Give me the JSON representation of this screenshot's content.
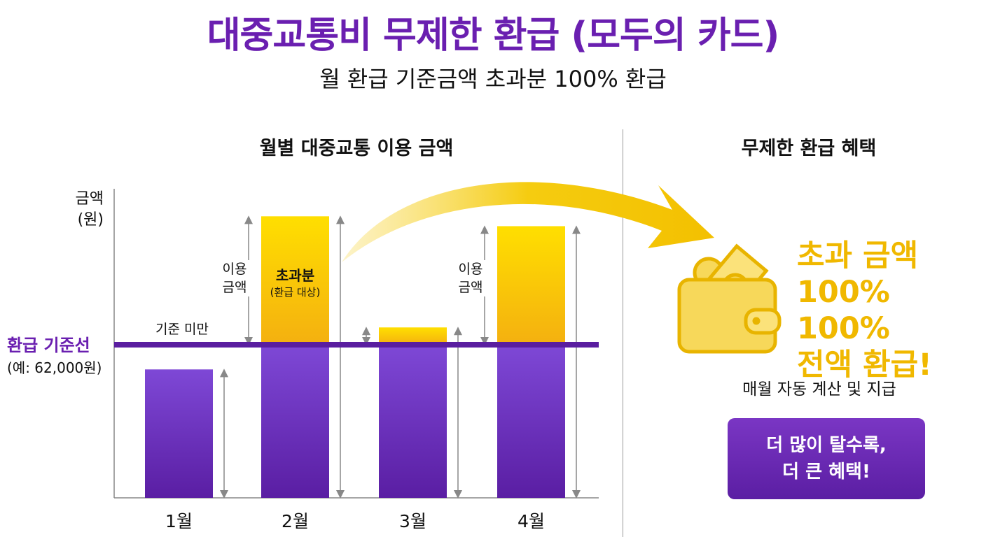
{
  "header": {
    "title": "대중교통비 무제한 환급 (모두의 카드)",
    "subtitle": "월 환급 기준금액 초과분 100% 환급"
  },
  "chart_section": {
    "title": "월별 대중교통 이용 금액",
    "y_label_line1": "금액",
    "y_label_line2": "(원)",
    "threshold_label": "환급 기준선",
    "threshold_note": "(예: 62,000원)",
    "below_label": "기준 미만",
    "usage_label_line1": "이용",
    "usage_label_line2": "금액",
    "excess_label": "초과분",
    "excess_note": "(환급 대상)"
  },
  "chart_data": {
    "type": "bar",
    "categories": [
      "1월",
      "2월",
      "3월",
      "4월"
    ],
    "values": [
      52000,
      114000,
      69000,
      110000
    ],
    "threshold": 62000,
    "ylabel": "금액 (원)",
    "colors": {
      "below": "#6a2dc0",
      "excess": "#f7c600",
      "threshold_line": "#5a1ea0"
    },
    "grid": false
  },
  "benefit_section": {
    "title": "무제한 환급 혜택",
    "headline_line1": "초과 금액",
    "headline_line2": "100% 100%",
    "headline_line3": "전액 환급!",
    "auto_note": "매월 자동 계산 및 지급",
    "cta_line1": "더 많이 탈수록,",
    "cta_line2": "더 큰 혜택!",
    "icon": "wallet-icon",
    "accent": "#f0b800"
  }
}
